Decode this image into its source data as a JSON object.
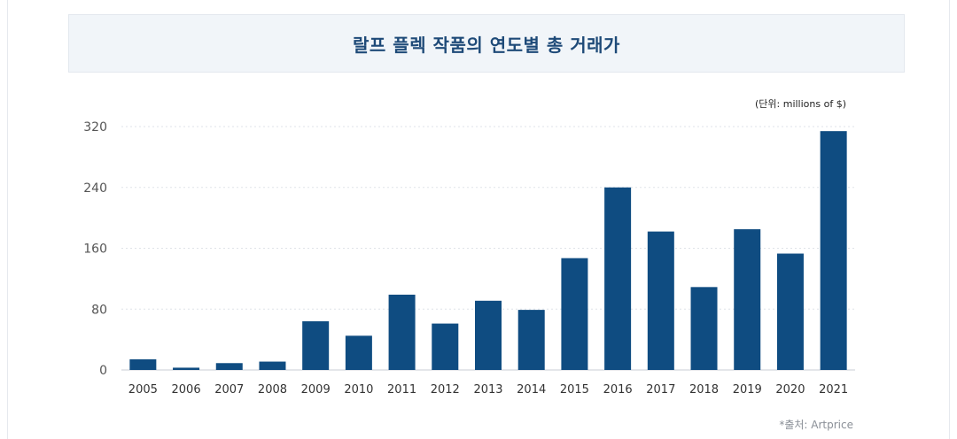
{
  "title": "랄프 플렉 작품의 연도별 총 거래가",
  "unit_label": "(단위: millions of $)",
  "source": "*출처: Artprice",
  "colors": {
    "bar": "#0f4c81",
    "title_text": "#1e4a78",
    "title_bg": "#f1f5f9",
    "axis_text": "#555555",
    "grid": "#dfe3e8"
  },
  "chart_data": {
    "type": "bar",
    "categories": [
      "2005",
      "2006",
      "2007",
      "2008",
      "2009",
      "2010",
      "2011",
      "2012",
      "2013",
      "2014",
      "2015",
      "2016",
      "2017",
      "2018",
      "2019",
      "2020",
      "2021"
    ],
    "values": [
      14,
      3,
      9,
      11,
      64,
      45,
      99,
      61,
      91,
      79,
      147,
      240,
      182,
      109,
      185,
      153,
      314
    ],
    "ylim": [
      0,
      320
    ],
    "yticks": [
      0,
      80,
      160,
      240,
      320
    ],
    "grid": true,
    "title": "랄프 플렉 작품의 연도별 총 거래가"
  }
}
